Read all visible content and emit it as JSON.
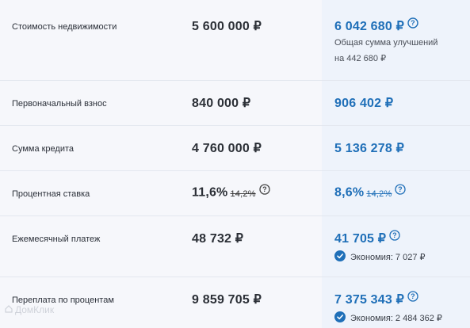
{
  "rows": [
    {
      "label": "Стоимость недвижимости",
      "value": "5 600 000 ₽",
      "new_value": "6 042 680 ₽",
      "note_line1": "Общая сумма улучшений",
      "note_line2": "на 442 680 ₽"
    },
    {
      "label": "Первоначальный взнос",
      "value": "840 000 ₽",
      "new_value": "906 402 ₽"
    },
    {
      "label": "Сумма кредита",
      "value": "4 760 000 ₽",
      "new_value": "5 136 278 ₽"
    },
    {
      "label": "Процентная ставка",
      "value": "11,6%",
      "old_value": "14,2%",
      "new_value": "8,6%",
      "new_old_value": "14,2%"
    },
    {
      "label": "Ежемесячный платеж",
      "value": "48 732 ₽",
      "new_value": "41 705 ₽",
      "economy": "Экономия: 7 027 ₽"
    },
    {
      "label": "Переплата по процентам",
      "value": "9 859 705 ₽",
      "new_value": "7 375 343 ₽",
      "economy": "Экономия: 2 484 362 ₽"
    }
  ],
  "watermark": "ДомКлик",
  "colors": {
    "accent": "#1f6fb8",
    "highlight_bg": "#eef3fb",
    "check_bg": "#1f6fb8"
  }
}
